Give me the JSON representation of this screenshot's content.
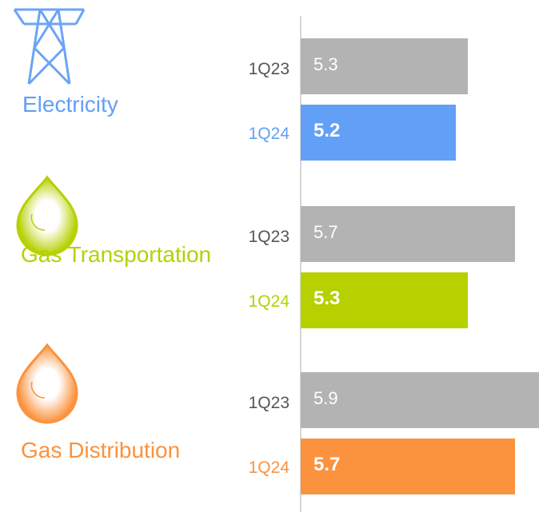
{
  "chart_data": {
    "type": "bar",
    "orientation": "horizontal",
    "xlim": [
      3.9,
      5.9
    ],
    "groups": [
      {
        "name": "Electricity",
        "color": "#62a0f7",
        "bars": [
          {
            "label": "1Q23",
            "value": 5.3,
            "color": "#b3b3b3"
          },
          {
            "label": "1Q24",
            "value": 5.2,
            "color": "#62a0f7"
          }
        ]
      },
      {
        "name": "Gas Transportation",
        "color": "#b6d000",
        "bars": [
          {
            "label": "1Q23",
            "value": 5.7,
            "color": "#b3b3b3"
          },
          {
            "label": "1Q24",
            "value": 5.3,
            "color": "#b6d000"
          }
        ]
      },
      {
        "name": "Gas Distribution",
        "color": "#fb923d",
        "bars": [
          {
            "label": "1Q23",
            "value": 5.9,
            "color": "#b3b3b3"
          },
          {
            "label": "1Q24",
            "value": 5.7,
            "color": "#fb923d"
          }
        ]
      }
    ]
  }
}
